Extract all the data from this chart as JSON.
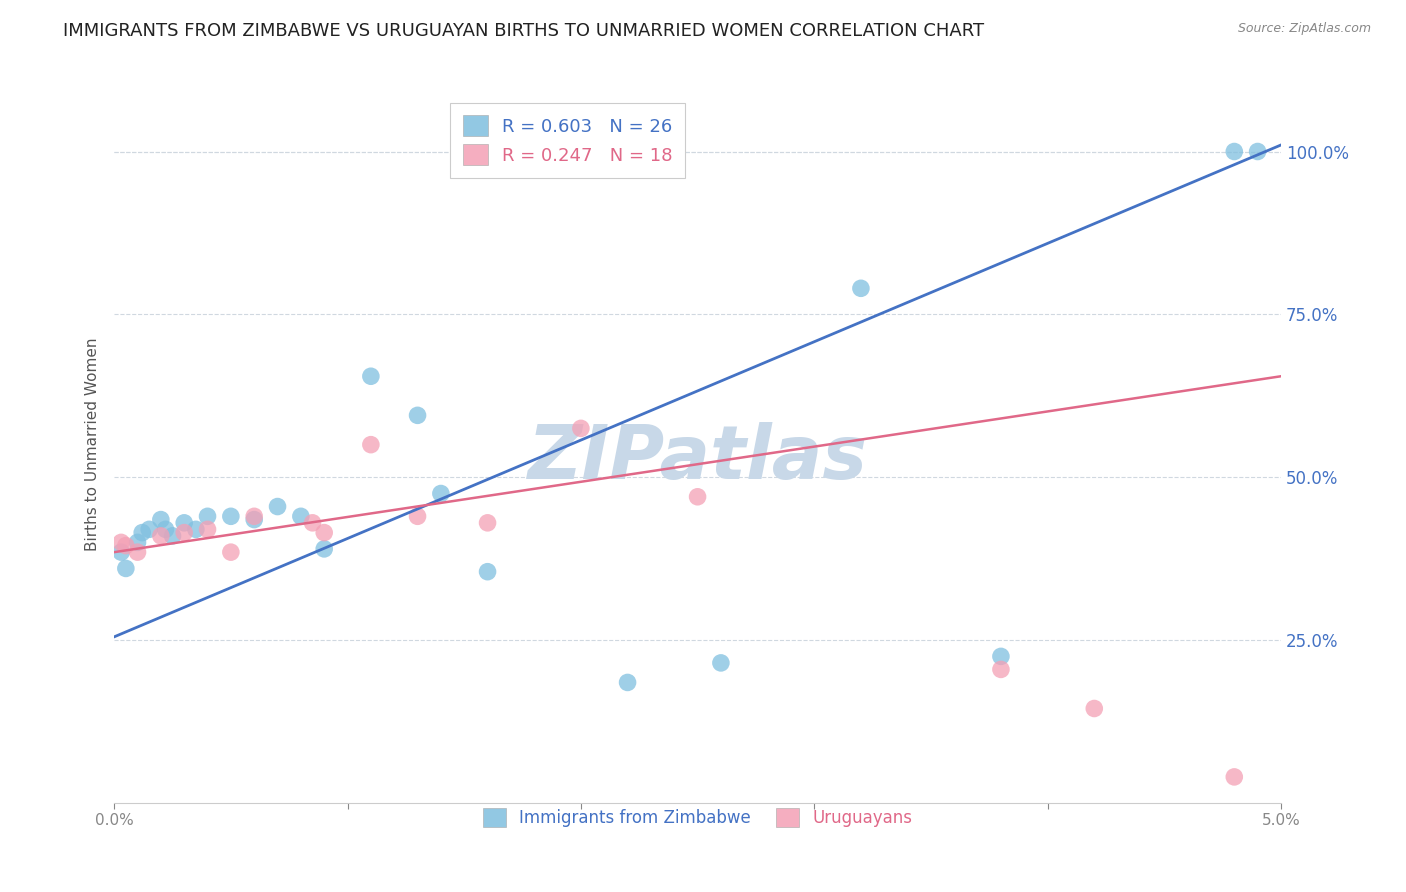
{
  "title": "IMMIGRANTS FROM ZIMBABWE VS URUGUAYAN BIRTHS TO UNMARRIED WOMEN CORRELATION CHART",
  "source": "Source: ZipAtlas.com",
  "ylabel": "Births to Unmarried Women",
  "ytick_labels": [
    "25.0%",
    "50.0%",
    "75.0%",
    "100.0%"
  ],
  "ytick_values": [
    0.25,
    0.5,
    0.75,
    1.0
  ],
  "xmin": 0.0,
  "xmax": 0.05,
  "ymin": 0.0,
  "ymax": 1.1,
  "blue_scatter_x": [
    0.0003,
    0.0005,
    0.001,
    0.0012,
    0.0015,
    0.002,
    0.0022,
    0.0025,
    0.003,
    0.0035,
    0.004,
    0.005,
    0.006,
    0.007,
    0.008,
    0.009,
    0.011,
    0.013,
    0.016,
    0.022,
    0.026,
    0.032,
    0.048,
    0.049,
    0.038,
    0.014
  ],
  "blue_scatter_y": [
    0.385,
    0.36,
    0.4,
    0.415,
    0.42,
    0.435,
    0.42,
    0.41,
    0.43,
    0.42,
    0.44,
    0.44,
    0.435,
    0.455,
    0.44,
    0.39,
    0.655,
    0.595,
    0.355,
    0.185,
    0.215,
    0.79,
    1.0,
    1.0,
    0.225,
    0.475
  ],
  "pink_scatter_x": [
    0.0003,
    0.0005,
    0.001,
    0.002,
    0.003,
    0.004,
    0.005,
    0.006,
    0.0085,
    0.009,
    0.011,
    0.013,
    0.016,
    0.02,
    0.025,
    0.038,
    0.042,
    0.048
  ],
  "pink_scatter_y": [
    0.4,
    0.395,
    0.385,
    0.41,
    0.415,
    0.42,
    0.385,
    0.44,
    0.43,
    0.415,
    0.55,
    0.44,
    0.43,
    0.575,
    0.47,
    0.205,
    0.145,
    0.04
  ],
  "blue_line_x0": 0.0,
  "blue_line_x1": 0.05,
  "blue_line_y0": 0.255,
  "blue_line_y1": 1.01,
  "pink_line_x0": 0.0,
  "pink_line_x1": 0.05,
  "pink_line_y0": 0.385,
  "pink_line_y1": 0.655,
  "blue_scatter_color": "#7fbfdf",
  "blue_line_color": "#4472c4",
  "pink_scatter_color": "#f4a0b5",
  "pink_line_color": "#e06888",
  "legend_blue_r": "R = 0.603",
  "legend_blue_n": "N = 26",
  "legend_pink_r": "R = 0.247",
  "legend_pink_n": "N = 18",
  "legend_label_blue": "Immigrants from Zimbabwe",
  "legend_label_pink": "Uruguayans",
  "watermark": "ZIPatlas",
  "watermark_color": "#c8d8e8",
  "background_color": "#ffffff",
  "grid_color": "#d0d8e0",
  "title_fontsize": 13,
  "axis_label_fontsize": 11,
  "tick_fontsize": 11,
  "right_tick_color": "#4472c4"
}
